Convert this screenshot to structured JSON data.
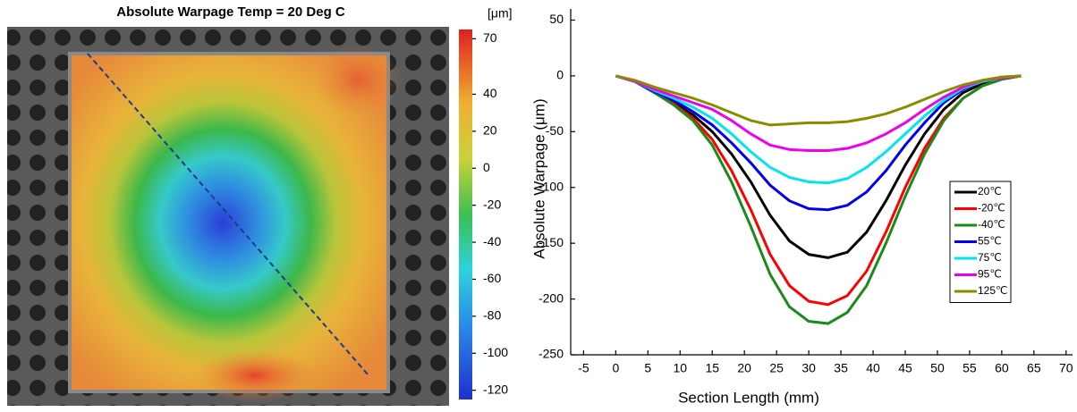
{
  "chart_data": [
    {
      "type": "heatmap",
      "title": "Absolute Warpage   Temp =  20 Deg C",
      "colorbar_label": "[μm]",
      "clim": [
        -125,
        75
      ],
      "colorbar_ticks": [
        70,
        40,
        20,
        0,
        -20,
        -40,
        -60,
        -80,
        -100,
        -120
      ]
    },
    {
      "type": "line",
      "xlabel": "Section Length (mm)",
      "ylabel": "Absolute Warpage (μm)",
      "x": [
        0,
        3,
        6,
        9,
        12,
        15,
        18,
        21,
        24,
        27,
        30,
        33,
        36,
        39,
        42,
        45,
        48,
        51,
        54,
        57,
        60,
        63
      ],
      "series": [
        {
          "name": "20℃",
          "color": "#000000",
          "values": [
            0,
            -5,
            -15,
            -24,
            -35,
            -50,
            -70,
            -95,
            -125,
            -148,
            -160,
            -163,
            -158,
            -140,
            -112,
            -80,
            -52,
            -30,
            -15,
            -7,
            -3,
            0
          ]
        },
        {
          "name": "-20℃",
          "color": "#ff0000",
          "values": [
            0,
            -5,
            -15,
            -25,
            -38,
            -57,
            -85,
            -120,
            -160,
            -188,
            -202,
            -205,
            -197,
            -175,
            -140,
            -100,
            -65,
            -38,
            -20,
            -9,
            -3,
            0
          ]
        },
        {
          "name": "-40℃",
          "color": "#1a8a1a",
          "values": [
            0,
            -5,
            -15,
            -26,
            -40,
            -62,
            -95,
            -135,
            -178,
            -207,
            -220,
            -222,
            -212,
            -188,
            -150,
            -108,
            -70,
            -40,
            -20,
            -9,
            -3,
            0
          ]
        },
        {
          "name": "55℃",
          "color": "#0000ee",
          "values": [
            0,
            -5,
            -14,
            -22,
            -32,
            -44,
            -60,
            -78,
            -98,
            -112,
            -119,
            -120,
            -116,
            -104,
            -85,
            -62,
            -42,
            -24,
            -12,
            -5,
            -2,
            0
          ]
        },
        {
          "name": "75℃",
          "color": "#00e5ee",
          "values": [
            0,
            -5,
            -13,
            -20,
            -28,
            -38,
            -52,
            -68,
            -82,
            -91,
            -95,
            -96,
            -92,
            -82,
            -68,
            -52,
            -36,
            -22,
            -11,
            -5,
            -2,
            0
          ]
        },
        {
          "name": "95℃",
          "color": "#ee00ee",
          "values": [
            0,
            -5,
            -12,
            -18,
            -24,
            -30,
            -40,
            -52,
            -62,
            -66,
            -67,
            -67,
            -65,
            -60,
            -52,
            -42,
            -30,
            -19,
            -10,
            -4,
            -2,
            0
          ]
        },
        {
          "name": "125℃",
          "color": "#8b8b00",
          "values": [
            0,
            -4,
            -10,
            -15,
            -20,
            -26,
            -33,
            -40,
            -44,
            -43,
            -42,
            -42,
            -41,
            -38,
            -34,
            -28,
            -21,
            -14,
            -8,
            -4,
            -1,
            0
          ]
        }
      ],
      "xlim": [
        -7,
        71
      ],
      "ylim": [
        -250,
        60
      ],
      "xticks": [
        -5,
        0,
        5,
        10,
        15,
        20,
        25,
        30,
        35,
        40,
        45,
        50,
        55,
        60,
        65,
        70
      ],
      "yticks": [
        50,
        0,
        -50,
        -100,
        -150,
        -200,
        -250
      ],
      "legend": "right"
    }
  ]
}
